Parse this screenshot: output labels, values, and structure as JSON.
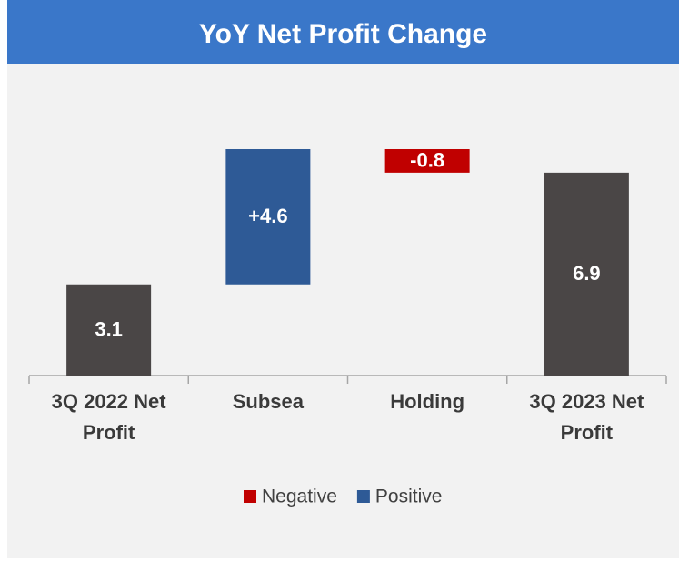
{
  "chart_data": {
    "type": "waterfall",
    "title": "YoY Net Profit Change",
    "categories": [
      "3Q 2022 Net Profit",
      "Subsea",
      "Holding",
      "3Q 2023 Net Profit"
    ],
    "values": [
      3.1,
      4.6,
      -0.8,
      6.9
    ],
    "value_labels": [
      "3.1",
      "+4.6",
      "-0.8",
      "6.9"
    ],
    "total_color": "#4a4646",
    "legend": [
      {
        "name": "Negative",
        "color": "#c00000"
      },
      {
        "name": "Positive",
        "color": "#2e5a96"
      }
    ]
  }
}
